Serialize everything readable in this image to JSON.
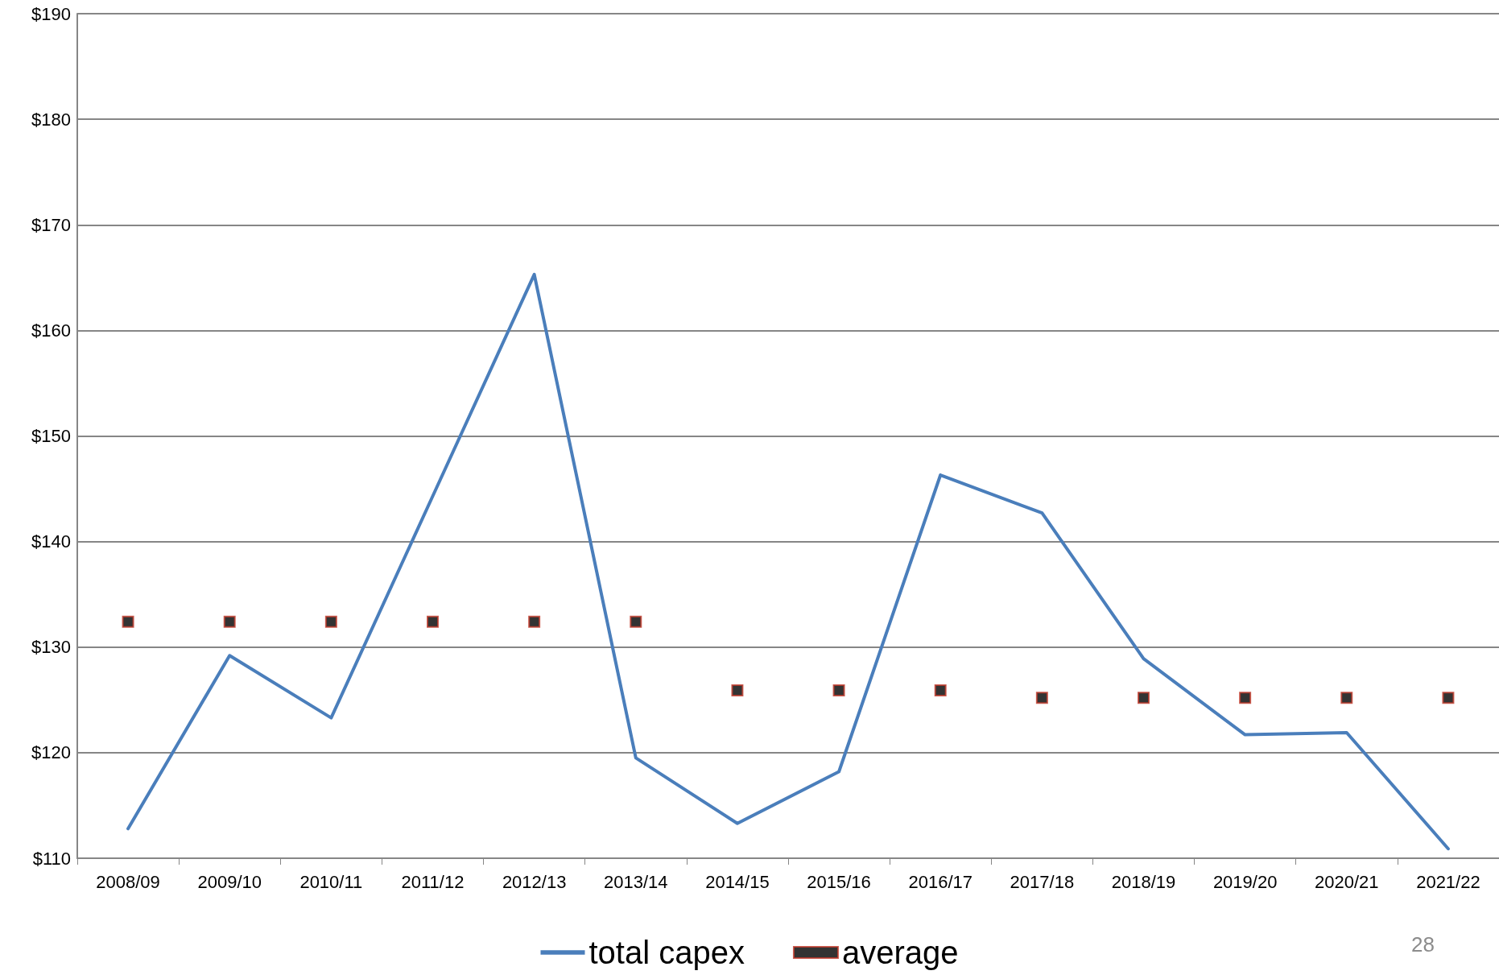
{
  "chart_data": {
    "type": "line",
    "categories": [
      "2008/09",
      "2009/10",
      "2010/11",
      "2011/12",
      "2012/13",
      "2013/14",
      "2014/15",
      "2015/16",
      "2016/17",
      "2017/18",
      "2018/19",
      "2019/20",
      "2020/21",
      "2021/22"
    ],
    "series": [
      {
        "name": "total capex",
        "color": "#4a7ebb",
        "marker": "none",
        "values": [
          112.8,
          129.2,
          123.3,
          144.3,
          165.3,
          119.5,
          113.3,
          118.2,
          146.3,
          142.7,
          128.9,
          121.7,
          121.9,
          110.9
        ]
      },
      {
        "name": "average",
        "type": "scatter",
        "color": "#000000",
        "marker": "square",
        "values": [
          132.4,
          132.4,
          132.4,
          132.4,
          132.4,
          132.4,
          125.9,
          125.9,
          125.9,
          125.2,
          125.2,
          125.2,
          125.2,
          125.2
        ]
      }
    ],
    "ylim": [
      110,
      190
    ],
    "yticks": [
      {
        "value": 110,
        "label": "$110"
      },
      {
        "value": 120,
        "label": "$120"
      },
      {
        "value": 130,
        "label": "$130"
      },
      {
        "value": 140,
        "label": "$140"
      },
      {
        "value": 150,
        "label": "$150"
      },
      {
        "value": 160,
        "label": "$160"
      },
      {
        "value": 170,
        "label": "$170"
      },
      {
        "value": 180,
        "label": "$180"
      },
      {
        "value": 190,
        "label": "$190"
      }
    ],
    "grid": "y",
    "legend": "bottom",
    "line_style": "solid",
    "annotations": [
      "28"
    ]
  }
}
